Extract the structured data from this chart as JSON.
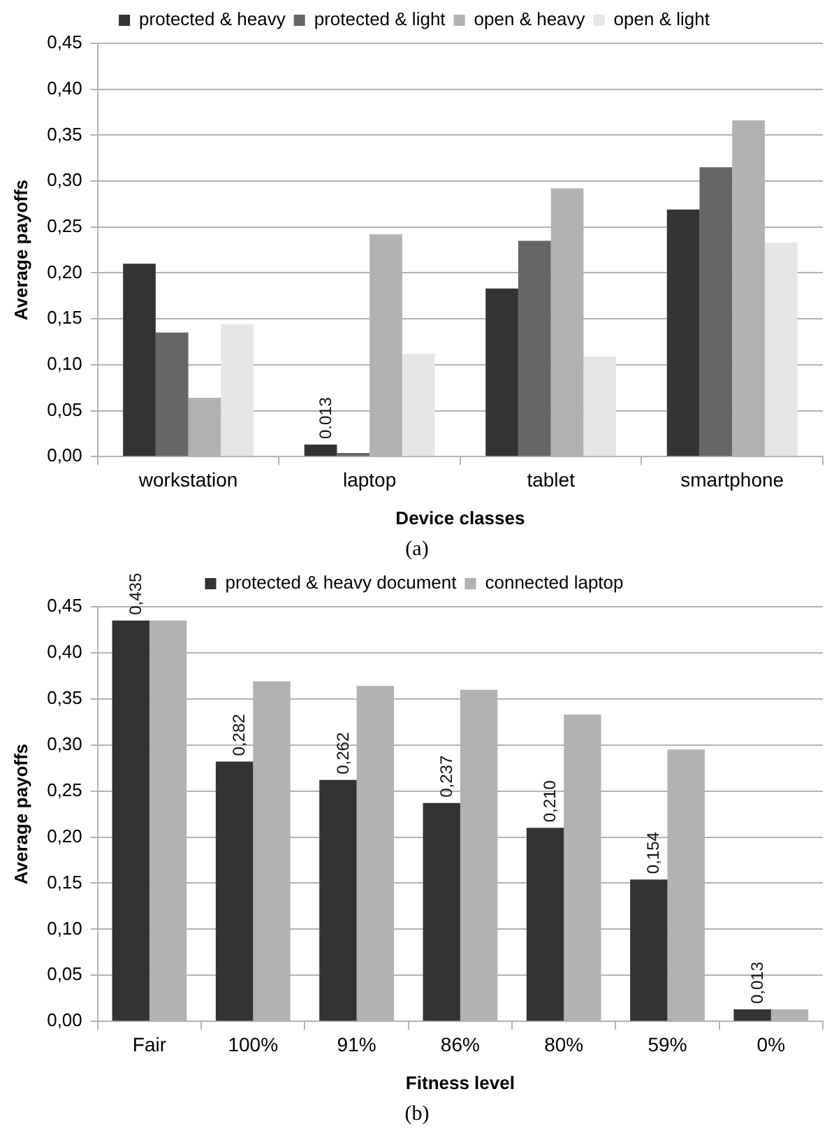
{
  "chart_data": [
    {
      "type": "bar",
      "xlabel": "Device classes",
      "ylabel": "Average payoffs",
      "categories": [
        "workstation",
        "laptop",
        "tablet",
        "smartphone"
      ],
      "series": [
        {
          "name": "protected & heavy",
          "color": "#333333",
          "values": [
            0.21,
            0.013,
            0.183,
            0.269
          ],
          "value_labels": [
            null,
            "0.013",
            null,
            null
          ]
        },
        {
          "name": "protected & light",
          "color": "#666666",
          "values": [
            0.135,
            0.004,
            0.235,
            0.315
          ]
        },
        {
          "name": "open & heavy",
          "color": "#b2b2b2",
          "values": [
            0.064,
            0.242,
            0.292,
            0.366
          ]
        },
        {
          "name": "open & light",
          "color": "#e6e6e6",
          "values": [
            0.144,
            0.112,
            0.109,
            0.233
          ]
        }
      ],
      "ylim": [
        0,
        0.45
      ],
      "yticks": [
        {
          "value": 0,
          "label": "0,00"
        },
        {
          "value": 0.05,
          "label": "0,05"
        },
        {
          "value": 0.1,
          "label": "0,10"
        },
        {
          "value": 0.15,
          "label": "0,15"
        },
        {
          "value": 0.2,
          "label": "0,20"
        },
        {
          "value": 0.25,
          "label": "0,25"
        },
        {
          "value": 0.3,
          "label": "0,30"
        },
        {
          "value": 0.35,
          "label": "0,35"
        },
        {
          "value": 0.4,
          "label": "0,40"
        },
        {
          "value": 0.45,
          "label": "0,45"
        }
      ],
      "grid": "y",
      "legend": "top",
      "annotations": [
        "(a)"
      ]
    },
    {
      "type": "bar",
      "xlabel": "Fitness level",
      "ylabel": "Average payoffs",
      "categories": [
        "Fair",
        "100%",
        "91%",
        "86%",
        "80%",
        "59%",
        "0%"
      ],
      "series": [
        {
          "name": "protected & heavy document",
          "color": "#333333",
          "values": [
            0.435,
            0.282,
            0.262,
            0.237,
            0.21,
            0.154,
            0.013
          ],
          "value_labels": [
            "0,435",
            "0,282",
            "0,262",
            "0,237",
            "0,210",
            "0,154",
            "0,013"
          ]
        },
        {
          "name": "connected laptop",
          "color": "#b2b2b2",
          "values": [
            0.435,
            0.369,
            0.364,
            0.36,
            0.333,
            0.295,
            0.013
          ]
        }
      ],
      "ylim": [
        0,
        0.45
      ],
      "yticks": [
        {
          "value": 0,
          "label": "0,00"
        },
        {
          "value": 0.05,
          "label": "0,05"
        },
        {
          "value": 0.1,
          "label": "0,10"
        },
        {
          "value": 0.15,
          "label": "0,15"
        },
        {
          "value": 0.2,
          "label": "0,20"
        },
        {
          "value": 0.25,
          "label": "0,25"
        },
        {
          "value": 0.3,
          "label": "0,30"
        },
        {
          "value": 0.35,
          "label": "0,35"
        },
        {
          "value": 0.4,
          "label": "0,40"
        },
        {
          "value": 0.45,
          "label": "0,45"
        }
      ],
      "grid": "y",
      "legend": "top",
      "annotations": [
        "(b)"
      ]
    }
  ]
}
